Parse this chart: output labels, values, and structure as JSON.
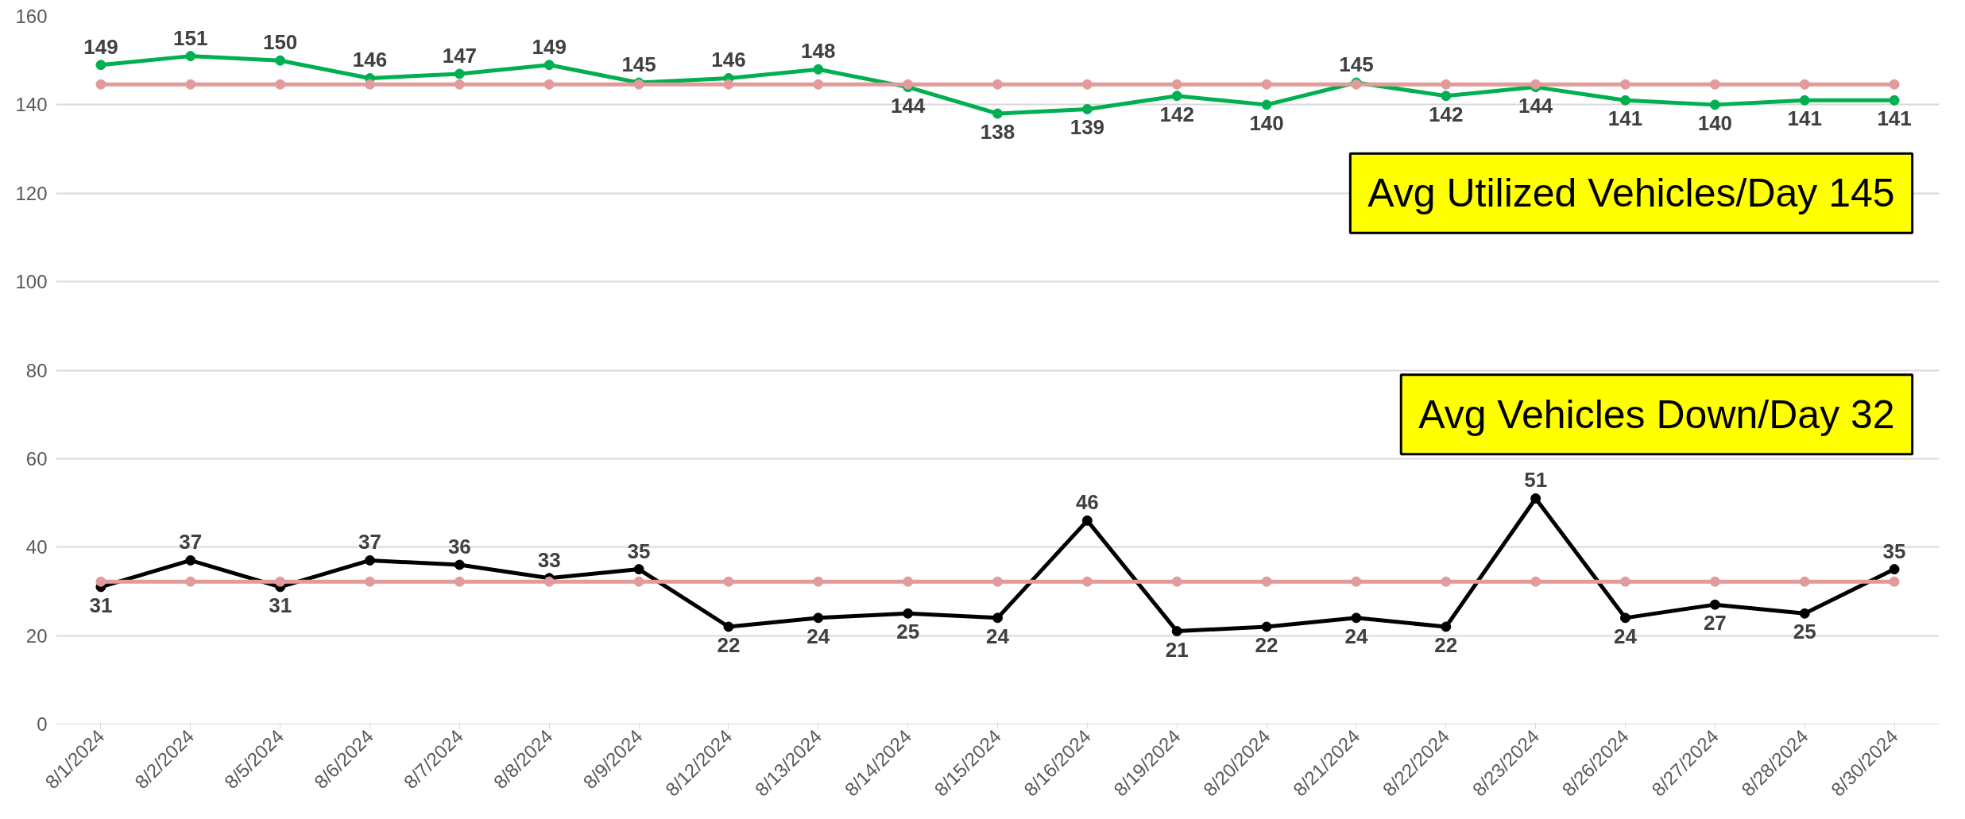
{
  "chart_data": {
    "type": "line",
    "categories": [
      "8/1/2024",
      "8/2/2024",
      "8/5/2024",
      "8/6/2024",
      "8/7/2024",
      "8/8/2024",
      "8/9/2024",
      "8/12/2024",
      "8/13/2024",
      "8/14/2024",
      "8/15/2024",
      "8/16/2024",
      "8/19/2024",
      "8/20/2024",
      "8/21/2024",
      "8/22/2024",
      "8/23/2024",
      "8/26/2024",
      "8/27/2024",
      "8/28/2024",
      "8/30/2024"
    ],
    "series": [
      {
        "color": "#00b050",
        "values": [
          149,
          151,
          150,
          146,
          147,
          149,
          145,
          146,
          148,
          144,
          138,
          139,
          142,
          140,
          145,
          142,
          144,
          141,
          140,
          141,
          141
        ],
        "value_labels": [
          "149",
          "151",
          "150",
          "146",
          "147",
          "149",
          "145",
          "146",
          "148",
          "144",
          "138",
          "139",
          "142",
          "140",
          "145",
          "142",
          "144",
          "141",
          "140",
          "141",
          "141"
        ]
      },
      {
        "color": "#e39a9a",
        "values": [
          144.6,
          144.6,
          144.6,
          144.6,
          144.6,
          144.6,
          144.6,
          144.6,
          144.6,
          144.6,
          144.6,
          144.6,
          144.6,
          144.6,
          144.6,
          144.6,
          144.6,
          144.6,
          144.6,
          144.6,
          144.6
        ]
      },
      {
        "color": "#000000",
        "values": [
          31,
          37,
          31,
          37,
          36,
          33,
          35,
          22,
          24,
          25,
          24,
          46,
          21,
          22,
          24,
          22,
          51,
          24,
          27,
          25,
          35
        ],
        "value_labels": [
          "31",
          "37",
          "31",
          "37",
          "36",
          "33",
          "35",
          "22",
          "24",
          "25",
          "24",
          "46",
          "21",
          "22",
          "24",
          "22",
          "51",
          "24",
          "27",
          "25",
          "35"
        ]
      },
      {
        "color": "#e39a9a",
        "values": [
          32.2,
          32.2,
          32.2,
          32.2,
          32.2,
          32.2,
          32.2,
          32.2,
          32.2,
          32.2,
          32.2,
          32.2,
          32.2,
          32.2,
          32.2,
          32.2,
          32.2,
          32.2,
          32.2,
          32.2,
          32.2
        ]
      }
    ],
    "ylim": [
      0,
      160
    ],
    "yticks": [
      0,
      20,
      40,
      60,
      80,
      100,
      120,
      140,
      160
    ],
    "grid": "y",
    "marker": "circle",
    "line_style": "solid",
    "annotations": [
      "Avg Utilized Vehicles/Day 145",
      "Avg Vehicles Down/Day 32"
    ]
  }
}
